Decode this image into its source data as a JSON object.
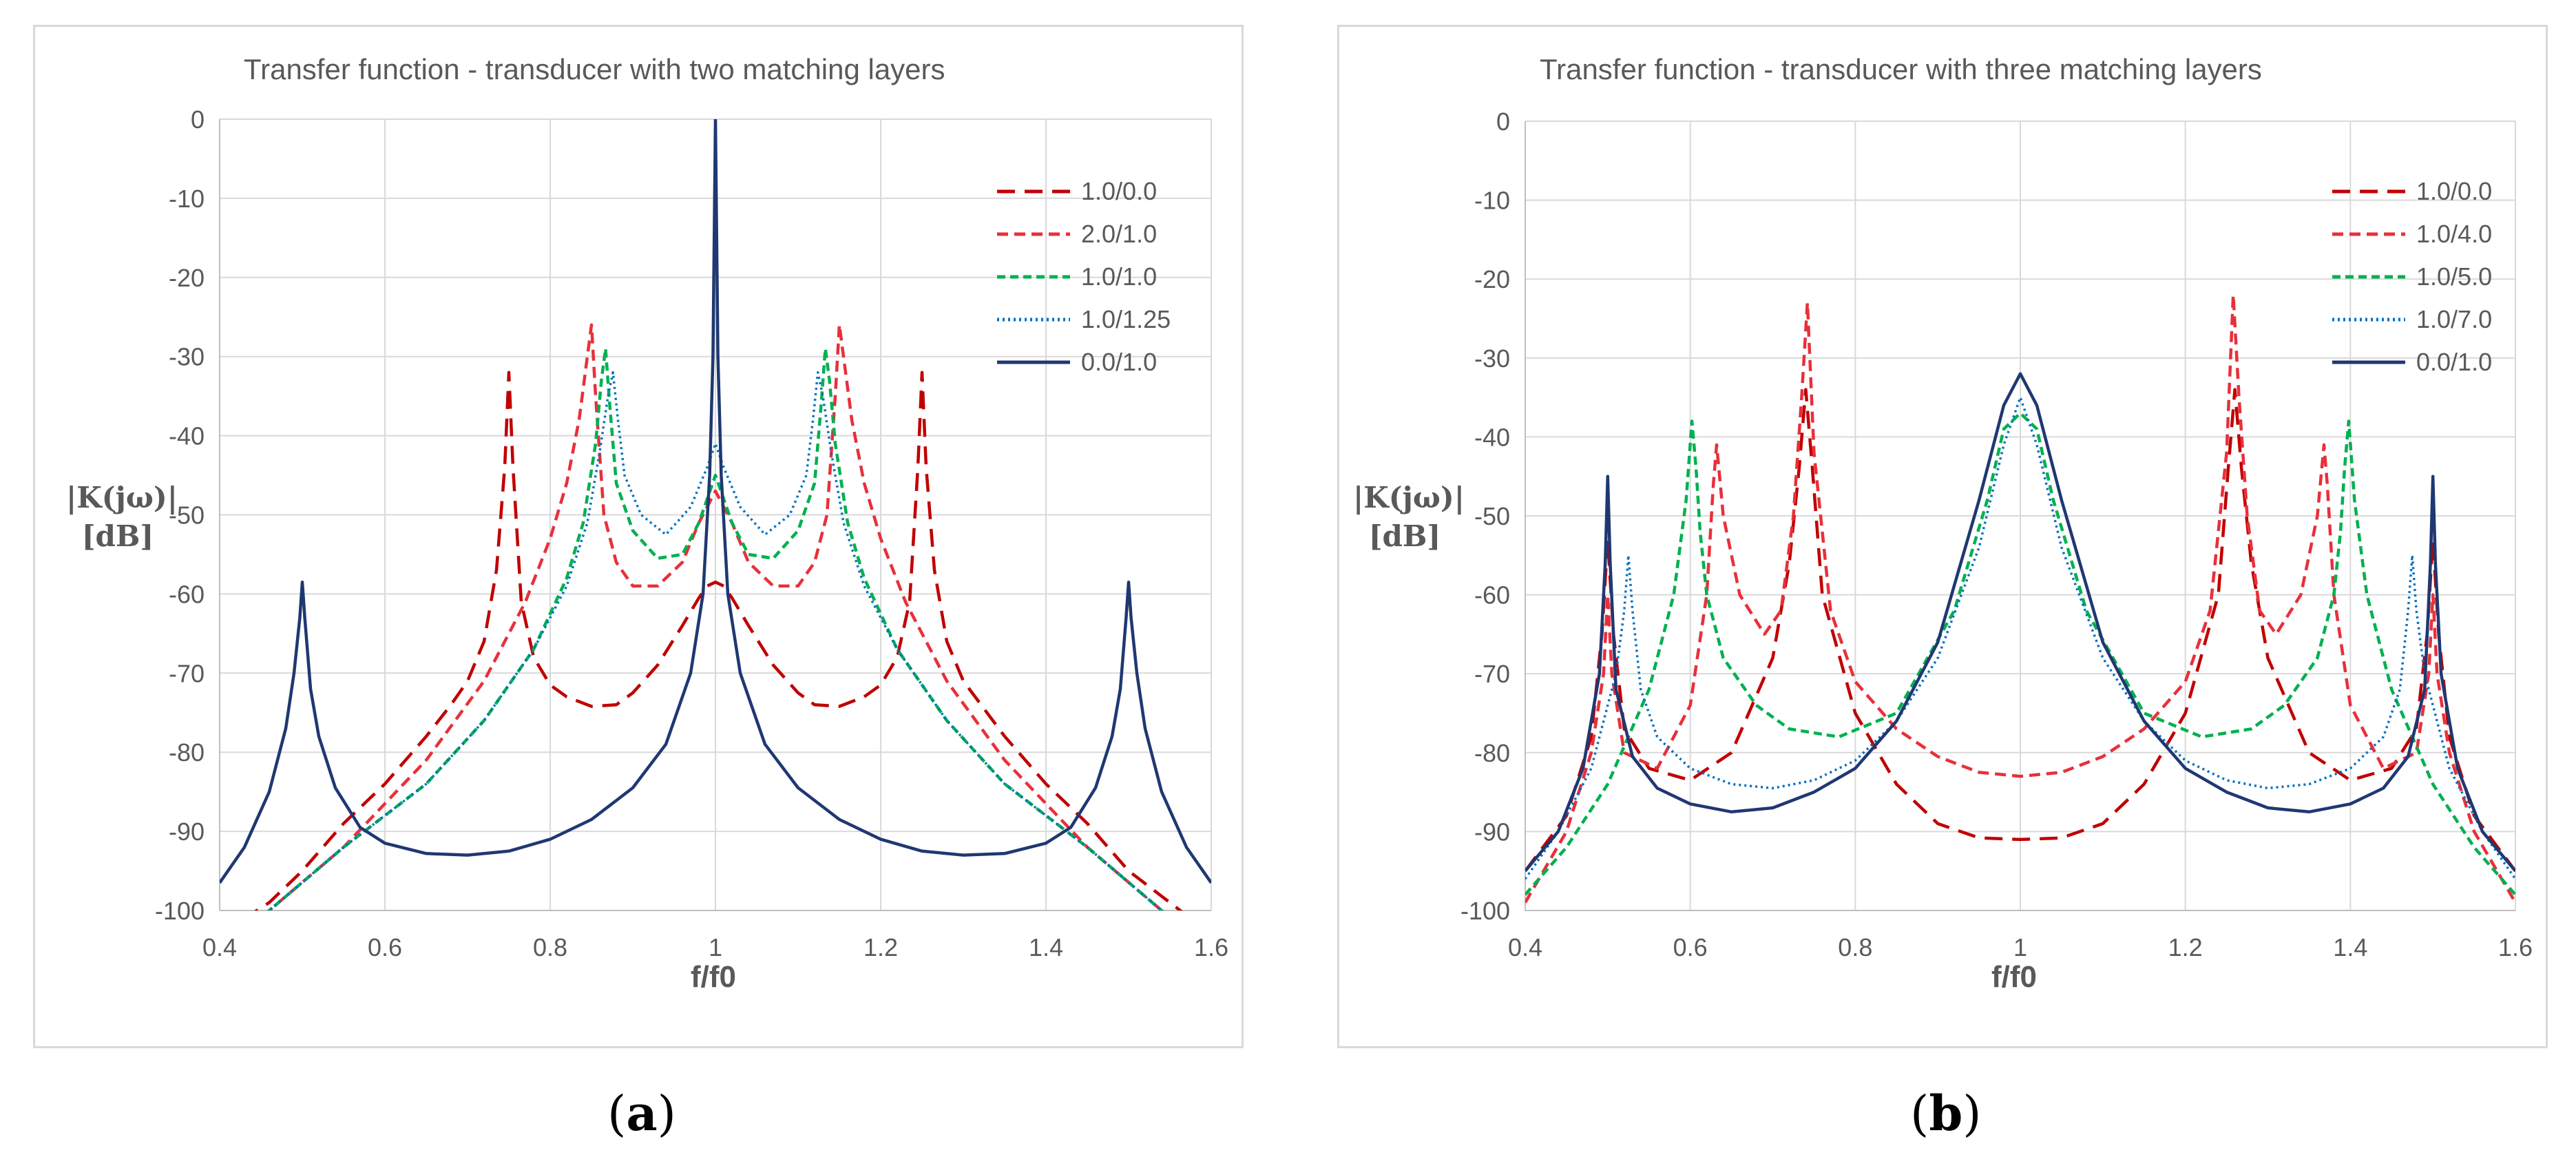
{
  "chart_data": [
    {
      "panel_label": "a",
      "type": "line",
      "title": "Transfer function - transducer with two matching layers",
      "xlabel": "f/f0",
      "ylabel_line1": "|K(jω)|",
      "ylabel_line2": "[dB]",
      "xlim": [
        0.4,
        1.6
      ],
      "ylim": [
        -100,
        0
      ],
      "xticks": [
        "0.4",
        "0.6",
        "0.8",
        "1",
        "1.2",
        "1.4",
        "1.6"
      ],
      "yticks": [
        "0",
        "-10",
        "-20",
        "-30",
        "-40",
        "-50",
        "-60",
        "-70",
        "-80",
        "-90",
        "-100"
      ],
      "grid": true,
      "legend_position": "top-right",
      "series": [
        {
          "name": "1.0/0.0",
          "color": "#c00000",
          "dash": "long-dash",
          "x": [
            0.4,
            0.46,
            0.5,
            0.55,
            0.6,
            0.65,
            0.68,
            0.7,
            0.72,
            0.735,
            0.745,
            0.75,
            0.755,
            0.765,
            0.78,
            0.8,
            0.82,
            0.85,
            0.88,
            0.9,
            0.93,
            0.96,
            0.98,
            0.99,
            1.0,
            1.01,
            1.02,
            1.04,
            1.07,
            1.1,
            1.12,
            1.15,
            1.18,
            1.2,
            1.22,
            1.235,
            1.245,
            1.25,
            1.255,
            1.265,
            1.28,
            1.3,
            1.35,
            1.4,
            1.45,
            1.5,
            1.55,
            1.6
          ],
          "y": [
            -103,
            -99,
            -95,
            -89,
            -84,
            -78,
            -74,
            -71,
            -66,
            -57,
            -44,
            -32,
            -44,
            -61,
            -68,
            -71.5,
            -73,
            -74.2,
            -74,
            -72.5,
            -69,
            -64,
            -60.5,
            -59,
            -58.5,
            -59,
            -60.5,
            -64,
            -69,
            -72.5,
            -74,
            -74.2,
            -73,
            -71.5,
            -68,
            -61,
            -44,
            -32,
            -44,
            -57,
            -66,
            -71,
            -78,
            -84,
            -89,
            -95,
            -99,
            -103
          ]
        },
        {
          "name": "2.0/1.0",
          "color": "#e8303a",
          "dash": "dash",
          "x": [
            0.4,
            0.46,
            0.55,
            0.65,
            0.72,
            0.77,
            0.8,
            0.82,
            0.835,
            0.845,
            0.85,
            0.855,
            0.865,
            0.88,
            0.9,
            0.93,
            0.96,
            0.98,
            1.0,
            1.02,
            1.04,
            1.07,
            1.1,
            1.12,
            1.135,
            1.145,
            1.15,
            1.155,
            1.165,
            1.18,
            1.2,
            1.23,
            1.28,
            1.35,
            1.45,
            1.54,
            1.6
          ],
          "y": [
            -104,
            -100,
            -92,
            -81,
            -71,
            -61,
            -53,
            -46,
            -38,
            -30,
            -26,
            -35,
            -50,
            -56,
            -59,
            -59,
            -56,
            -51,
            -47,
            -51,
            -56,
            -59,
            -59,
            -56,
            -50,
            -35,
            -26,
            -30,
            -38,
            -46,
            -53,
            -61,
            -71,
            -81,
            -92,
            -100,
            -104
          ]
        },
        {
          "name": "1.0/1.0",
          "color": "#00b050",
          "dash": "short-dash",
          "x": [
            0.4,
            0.46,
            0.55,
            0.65,
            0.72,
            0.78,
            0.82,
            0.84,
            0.855,
            0.862,
            0.867,
            0.872,
            0.88,
            0.9,
            0.93,
            0.96,
            0.98,
            1.0,
            1.02,
            1.04,
            1.07,
            1.1,
            1.12,
            1.128,
            1.133,
            1.138,
            1.145,
            1.16,
            1.18,
            1.22,
            1.28,
            1.35,
            1.45,
            1.54,
            1.6
          ],
          "y": [
            -104,
            -100,
            -92,
            -84,
            -76,
            -67,
            -58,
            -51,
            -41,
            -33,
            -29,
            -36,
            -46,
            -52,
            -55.5,
            -55,
            -51,
            -45,
            -51,
            -55,
            -55.5,
            -52,
            -46,
            -36,
            -29,
            -33,
            -41,
            -51,
            -58,
            -67,
            -76,
            -84,
            -92,
            -100,
            -104
          ]
        },
        {
          "name": "1.0/1.25",
          "color": "#0070c0",
          "dash": "dot",
          "x": [
            0.4,
            0.46,
            0.55,
            0.65,
            0.72,
            0.78,
            0.82,
            0.845,
            0.86,
            0.87,
            0.876,
            0.882,
            0.89,
            0.91,
            0.94,
            0.97,
            0.99,
            1.0,
            1.01,
            1.03,
            1.06,
            1.09,
            1.11,
            1.118,
            1.124,
            1.13,
            1.14,
            1.155,
            1.18,
            1.22,
            1.28,
            1.35,
            1.45,
            1.54,
            1.6
          ],
          "y": [
            -104,
            -100,
            -92,
            -84,
            -76,
            -67,
            -59,
            -51,
            -42,
            -35,
            -32,
            -38,
            -45,
            -50,
            -52.5,
            -49,
            -44,
            -41,
            -44,
            -49,
            -52.5,
            -50,
            -45,
            -38,
            -32,
            -35,
            -42,
            -51,
            -59,
            -67,
            -76,
            -84,
            -92,
            -100,
            -104
          ]
        },
        {
          "name": "0.0/1.0",
          "color": "#1f3872",
          "dash": "solid",
          "x": [
            0.4,
            0.43,
            0.46,
            0.48,
            0.49,
            0.497,
            0.5,
            0.503,
            0.51,
            0.52,
            0.54,
            0.57,
            0.6,
            0.65,
            0.7,
            0.75,
            0.8,
            0.85,
            0.9,
            0.94,
            0.97,
            0.985,
            0.993,
            0.997,
            1.0,
            1.003,
            1.007,
            1.015,
            1.03,
            1.06,
            1.1,
            1.15,
            1.2,
            1.25,
            1.3,
            1.35,
            1.4,
            1.43,
            1.46,
            1.48,
            1.49,
            1.497,
            1.5,
            1.503,
            1.51,
            1.52,
            1.54,
            1.57,
            1.6
          ],
          "y": [
            -96.5,
            -92,
            -85,
            -77,
            -70,
            -63,
            -58.5,
            -63,
            -72,
            -78,
            -84.5,
            -89.5,
            -91.5,
            -92.8,
            -93,
            -92.5,
            -91,
            -88.5,
            -84.5,
            -79,
            -70,
            -60,
            -45,
            -30,
            0,
            -30,
            -45,
            -60,
            -70,
            -79,
            -84.5,
            -88.5,
            -91,
            -92.5,
            -93,
            -92.8,
            -91.5,
            -89.5,
            -84.5,
            -78,
            -72,
            -63,
            -58.5,
            -63,
            -70,
            -77,
            -85,
            -92,
            -96.5
          ]
        }
      ]
    },
    {
      "panel_label": "b",
      "type": "line",
      "title": "Transfer function - transducer with three matching layers",
      "xlabel": "f/f0",
      "ylabel_line1": "|K(jω)|",
      "ylabel_line2": "[dB]",
      "xlim": [
        0.4,
        1.6
      ],
      "ylim": [
        -100,
        0
      ],
      "xticks": [
        "0.4",
        "0.6",
        "0.8",
        "1",
        "1.2",
        "1.4",
        "1.6"
      ],
      "yticks": [
        "0",
        "-10",
        "-20",
        "-30",
        "-40",
        "-50",
        "-60",
        "-70",
        "-80",
        "-90",
        "-100"
      ],
      "grid": true,
      "legend_position": "top-right",
      "series": [
        {
          "name": "1.0/0.0",
          "color": "#c00000",
          "dash": "long-dash",
          "x": [
            0.4,
            0.45,
            0.48,
            0.493,
            0.5,
            0.507,
            0.52,
            0.55,
            0.6,
            0.65,
            0.7,
            0.72,
            0.732,
            0.74,
            0.748,
            0.76,
            0.8,
            0.85,
            0.9,
            0.95,
            1.0,
            1.05,
            1.1,
            1.15,
            1.2,
            1.24,
            1.252,
            1.26,
            1.268,
            1.28,
            1.3,
            1.35,
            1.4,
            1.45,
            1.48,
            1.493,
            1.5,
            1.507,
            1.52,
            1.55,
            1.6
          ],
          "y": [
            -95,
            -88,
            -78,
            -65,
            -53,
            -65,
            -77,
            -82,
            -83.5,
            -80,
            -68,
            -56,
            -44,
            -34,
            -44,
            -60,
            -75,
            -84,
            -89,
            -90.8,
            -91,
            -90.8,
            -89,
            -84,
            -75,
            -60,
            -44,
            -34,
            -44,
            -56,
            -68,
            -80,
            -83.5,
            -82,
            -77,
            -65,
            -53,
            -65,
            -78,
            -88,
            -95
          ]
        },
        {
          "name": "1.0/4.0",
          "color": "#e8303a",
          "dash": "dash",
          "x": [
            0.4,
            0.45,
            0.48,
            0.495,
            0.5,
            0.505,
            0.52,
            0.56,
            0.6,
            0.62,
            0.628,
            0.632,
            0.64,
            0.66,
            0.69,
            0.71,
            0.725,
            0.735,
            0.742,
            0.75,
            0.77,
            0.8,
            0.85,
            0.9,
            0.95,
            1.0,
            1.05,
            1.1,
            1.15,
            1.2,
            1.23,
            1.25,
            1.258,
            1.265,
            1.275,
            1.29,
            1.31,
            1.34,
            1.36,
            1.368,
            1.372,
            1.38,
            1.4,
            1.44,
            1.48,
            1.495,
            1.5,
            1.505,
            1.52,
            1.55,
            1.6
          ],
          "y": [
            -99,
            -90,
            -80,
            -70,
            -60,
            -70,
            -80,
            -82,
            -74,
            -60,
            -46,
            -41,
            -50,
            -60,
            -65,
            -62,
            -50,
            -35,
            -23,
            -42,
            -62,
            -71,
            -77,
            -80.5,
            -82.5,
            -83,
            -82.5,
            -80.5,
            -77,
            -71,
            -62,
            -42,
            -22,
            -35,
            -50,
            -62,
            -65,
            -60,
            -50,
            -41,
            -46,
            -60,
            -74,
            -82,
            -80,
            -70,
            -60,
            -70,
            -80,
            -90,
            -99
          ]
        },
        {
          "name": "1.0/5.0",
          "color": "#00b050",
          "dash": "short-dash",
          "x": [
            0.4,
            0.45,
            0.5,
            0.55,
            0.58,
            0.595,
            0.602,
            0.607,
            0.612,
            0.62,
            0.64,
            0.68,
            0.72,
            0.78,
            0.85,
            0.92,
            0.96,
            0.98,
            1.0,
            1.02,
            1.04,
            1.08,
            1.15,
            1.22,
            1.28,
            1.32,
            1.36,
            1.38,
            1.388,
            1.393,
            1.398,
            1.405,
            1.42,
            1.45,
            1.5,
            1.55,
            1.6
          ],
          "y": [
            -98,
            -92,
            -84,
            -72,
            -60,
            -48,
            -38,
            -44,
            -52,
            -60,
            -68,
            -74,
            -77,
            -78,
            -75,
            -62,
            -48,
            -39,
            -37,
            -39,
            -48,
            -62,
            -75,
            -78,
            -77,
            -74,
            -68,
            -60,
            -52,
            -44,
            -38,
            -48,
            -60,
            -72,
            -84,
            -92,
            -98
          ]
        },
        {
          "name": "1.0/7.0",
          "color": "#0070c0",
          "dash": "dot",
          "x": [
            0.4,
            0.44,
            0.48,
            0.51,
            0.52,
            0.525,
            0.53,
            0.54,
            0.56,
            0.6,
            0.65,
            0.7,
            0.75,
            0.8,
            0.85,
            0.9,
            0.95,
            0.98,
            1.0,
            1.02,
            1.05,
            1.1,
            1.15,
            1.2,
            1.25,
            1.3,
            1.35,
            1.4,
            1.44,
            1.46,
            1.47,
            1.475,
            1.48,
            1.49,
            1.52,
            1.56,
            1.6
          ],
          "y": [
            -96,
            -90,
            -82,
            -70,
            -62,
            -55,
            -62,
            -72,
            -78,
            -82,
            -84,
            -84.5,
            -83.5,
            -81,
            -76,
            -68,
            -54,
            -41,
            -35,
            -41,
            -54,
            -68,
            -76,
            -81,
            -83.5,
            -84.5,
            -84,
            -82,
            -78,
            -72,
            -62,
            -55,
            -62,
            -70,
            -82,
            -90,
            -96
          ]
        },
        {
          "name": "0.0/1.0",
          "color": "#1f3872",
          "dash": "solid",
          "x": [
            0.4,
            0.44,
            0.47,
            0.49,
            0.497,
            0.5,
            0.503,
            0.51,
            0.53,
            0.56,
            0.6,
            0.65,
            0.7,
            0.75,
            0.8,
            0.85,
            0.9,
            0.95,
            0.98,
            1.0,
            1.02,
            1.05,
            1.1,
            1.15,
            1.2,
            1.25,
            1.3,
            1.35,
            1.4,
            1.44,
            1.47,
            1.49,
            1.497,
            1.5,
            1.503,
            1.51,
            1.53,
            1.56,
            1.6
          ],
          "y": [
            -95,
            -90,
            -82,
            -70,
            -56,
            -45,
            -56,
            -72,
            -80.5,
            -84.5,
            -86.5,
            -87.5,
            -87,
            -85,
            -82,
            -76,
            -66,
            -48,
            -36,
            -32,
            -36,
            -48,
            -66,
            -76,
            -82,
            -85,
            -87,
            -87.5,
            -86.5,
            -84.5,
            -80.5,
            -72,
            -56,
            -45,
            -56,
            -70,
            -82,
            -90,
            -95
          ]
        }
      ]
    }
  ],
  "captions": {
    "a": "a",
    "b": "b"
  }
}
